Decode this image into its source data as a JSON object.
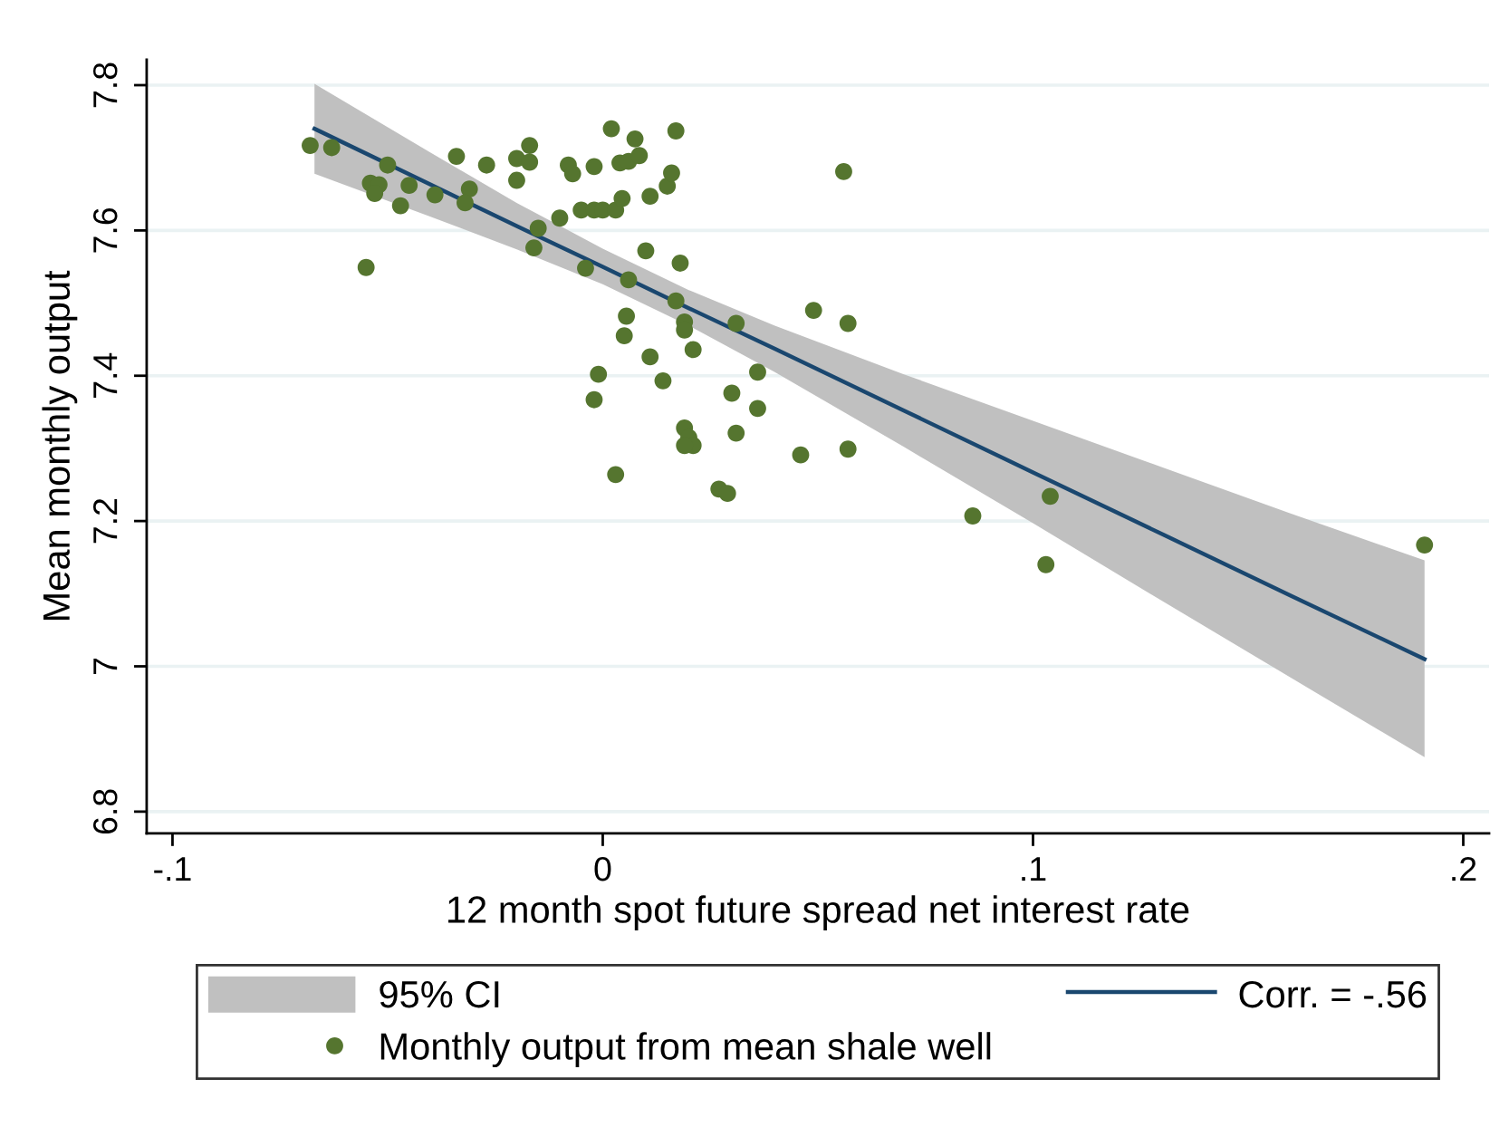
{
  "chart_data": {
    "type": "scatter",
    "xlabel": "12 month spot future spread net interest rate",
    "ylabel": "Mean monthly output",
    "xlim": [
      -0.106,
      0.206
    ],
    "ylim": [
      6.77,
      7.835
    ],
    "xticks": [
      {
        "value": -0.1,
        "label": "-.1"
      },
      0,
      {
        "value": 0.1,
        "label": ".1"
      },
      {
        "value": 0.2,
        "label": ".2"
      }
    ],
    "yticks": [
      6.8,
      7,
      7.2,
      7.4,
      7.6,
      7.8
    ],
    "grid": "y",
    "legend": "bottom",
    "series": [
      {
        "name": "95% CI",
        "type": "area",
        "color": "#c0c0c0"
      },
      {
        "name": "Corr. = -.56",
        "type": "line",
        "color": "#1a476f",
        "x": [
          -0.067,
          -0.04,
          -0.02,
          0,
          0.02,
          0.04,
          0.07,
          0.1,
          0.13,
          0.16,
          0.191
        ],
        "values": [
          7.74,
          7.663,
          7.606,
          7.55,
          7.493,
          7.437,
          7.352,
          7.267,
          7.182,
          7.097,
          7.01
        ],
        "lower": [
          7.678,
          7.619,
          7.574,
          7.526,
          7.469,
          7.405,
          7.302,
          7.197,
          7.09,
          6.984,
          6.875
        ],
        "upper": [
          7.802,
          7.707,
          7.638,
          7.575,
          7.518,
          7.469,
          7.402,
          7.338,
          7.274,
          7.21,
          7.146
        ]
      },
      {
        "name": "Monthly output from mean shale well",
        "color": "#55752f",
        "marker": "circle",
        "x": [
          -0.068,
          -0.063,
          -0.055,
          -0.054,
          -0.052,
          -0.053,
          -0.05,
          -0.047,
          -0.045,
          -0.039,
          -0.034,
          -0.031,
          -0.032,
          -0.027,
          -0.02,
          -0.017,
          -0.017,
          -0.02,
          -0.015,
          -0.016,
          -0.01,
          -0.008,
          -0.007,
          -0.004,
          -0.002,
          -0.005,
          -0.002,
          0.0,
          0.003,
          0.002,
          0.0045,
          0.004,
          0.006,
          0.0085,
          0.0075,
          0.006,
          0.0055,
          0.005,
          -0.001,
          -0.002,
          0.003,
          0.011,
          0.015,
          0.016,
          0.017,
          0.01,
          0.018,
          0.017,
          0.019,
          0.019,
          0.031,
          0.021,
          0.011,
          0.014,
          0.036,
          0.03,
          0.036,
          0.019,
          0.02,
          0.021,
          0.019,
          0.031,
          0.027,
          0.029,
          0.046,
          0.057,
          0.049,
          0.057,
          0.056,
          0.086,
          0.104,
          0.103,
          0.191
        ],
        "values": [
          7.717,
          7.714,
          7.549,
          7.665,
          7.663,
          7.651,
          7.69,
          7.634,
          7.662,
          7.649,
          7.702,
          7.657,
          7.638,
          7.69,
          7.699,
          7.694,
          7.717,
          7.669,
          7.603,
          7.576,
          7.617,
          7.69,
          7.678,
          7.548,
          7.688,
          7.628,
          7.628,
          7.628,
          7.628,
          7.74,
          7.644,
          7.693,
          7.695,
          7.703,
          7.726,
          7.532,
          7.482,
          7.455,
          7.402,
          7.367,
          7.264,
          7.647,
          7.661,
          7.679,
          7.737,
          7.572,
          7.555,
          7.503,
          7.474,
          7.463,
          7.472,
          7.436,
          7.426,
          7.393,
          7.405,
          7.376,
          7.355,
          7.328,
          7.315,
          7.304,
          7.304,
          7.321,
          7.244,
          7.238,
          7.291,
          7.299,
          7.49,
          7.472,
          7.681,
          7.207,
          7.234,
          7.14,
          7.167
        ]
      }
    ]
  }
}
